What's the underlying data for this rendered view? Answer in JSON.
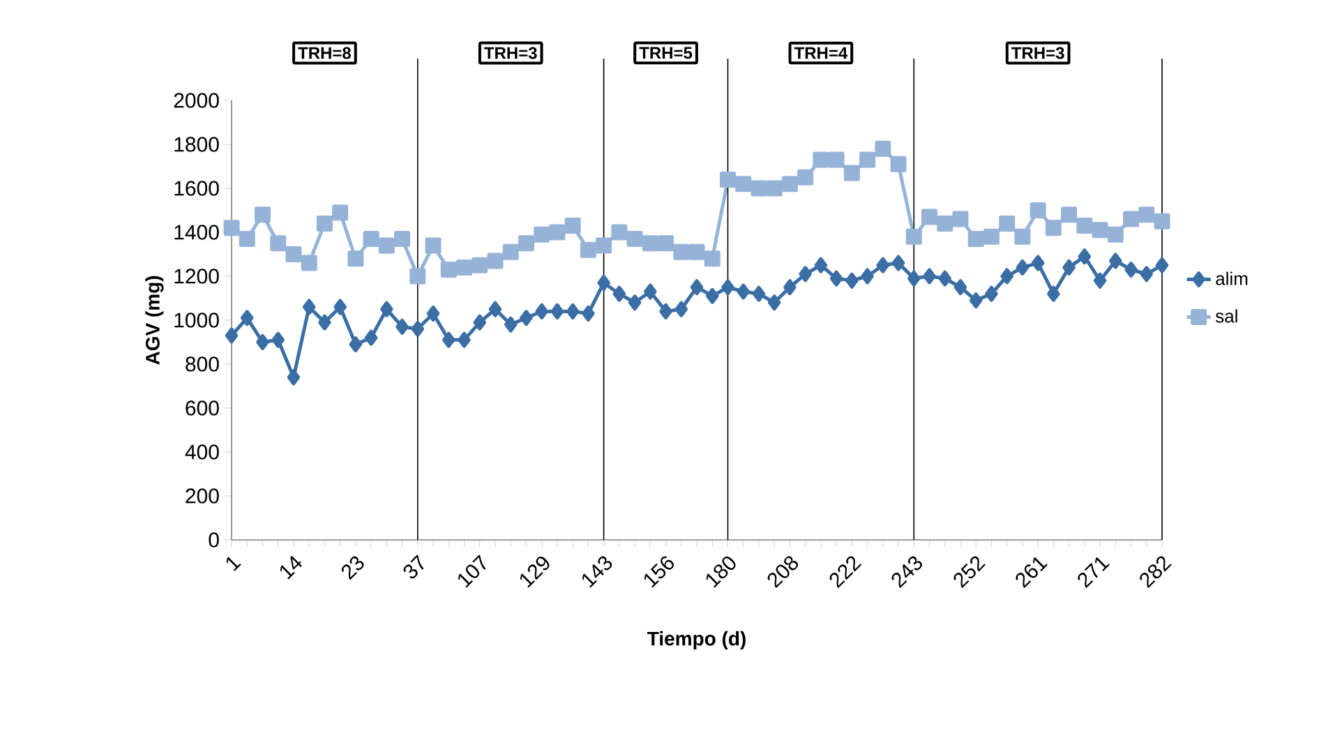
{
  "chart_data": {
    "type": "line",
    "xlabel": "Tiempo (d)",
    "ylabel": "AGV (mg)",
    "categories": [
      "1",
      null,
      null,
      null,
      "14",
      null,
      null,
      null,
      "23",
      null,
      null,
      null,
      "37",
      null,
      null,
      null,
      "107",
      null,
      null,
      null,
      "129",
      null,
      null,
      null,
      "143",
      null,
      null,
      null,
      "156",
      null,
      null,
      null,
      "180",
      null,
      null,
      null,
      "208",
      null,
      null,
      null,
      "222",
      null,
      null,
      null,
      "243",
      null,
      null,
      null,
      "252",
      null,
      null,
      null,
      "261",
      null,
      null,
      null,
      "271",
      null,
      null,
      null,
      "282"
    ],
    "series": [
      {
        "name": "alim",
        "color": "#3a6ea5",
        "marker": "diamond",
        "values": [
          930,
          1010,
          900,
          910,
          740,
          1060,
          990,
          1060,
          890,
          920,
          1050,
          970,
          960,
          1030,
          910,
          910,
          990,
          1050,
          980,
          1010,
          1040,
          1040,
          1040,
          1030,
          1170,
          1120,
          1080,
          1130,
          1040,
          1050,
          1150,
          1110,
          1150,
          1130,
          1120,
          1080,
          1150,
          1210,
          1250,
          1190,
          1180,
          1200,
          1250,
          1260,
          1190,
          1200,
          1190,
          1150,
          1090,
          1120,
          1200,
          1240,
          1260,
          1120,
          1240,
          1290,
          1180,
          1270,
          1230,
          1210,
          1250
        ]
      },
      {
        "name": "sal",
        "color": "#95b3d7",
        "marker": "square",
        "values": [
          1420,
          1370,
          1480,
          1350,
          1300,
          1260,
          1440,
          1490,
          1280,
          1370,
          1340,
          1370,
          1200,
          1340,
          1230,
          1240,
          1250,
          1270,
          1310,
          1350,
          1390,
          1400,
          1430,
          1320,
          1340,
          1400,
          1370,
          1350,
          1350,
          1310,
          1310,
          1280,
          1640,
          1620,
          1600,
          1600,
          1620,
          1650,
          1730,
          1730,
          1670,
          1730,
          1780,
          1710,
          1380,
          1470,
          1440,
          1460,
          1370,
          1380,
          1440,
          1380,
          1500,
          1420,
          1480,
          1430,
          1410,
          1390,
          1460,
          1480,
          1450
        ]
      }
    ],
    "ylim": [
      0,
      2000
    ],
    "yticks": [
      0,
      200,
      400,
      600,
      800,
      1000,
      1200,
      1400,
      1600,
      1800,
      2000
    ],
    "legend": "right",
    "ref_lines": [
      {
        "axis": "x",
        "value": "37"
      },
      {
        "axis": "x",
        "value": "143"
      },
      {
        "axis": "x",
        "value": "180"
      },
      {
        "axis": "x",
        "value": "243"
      }
    ],
    "annotations": [
      "TRH=8",
      "TRH=3",
      "TRH=5",
      "TRH=4",
      "TRH=3"
    ]
  }
}
